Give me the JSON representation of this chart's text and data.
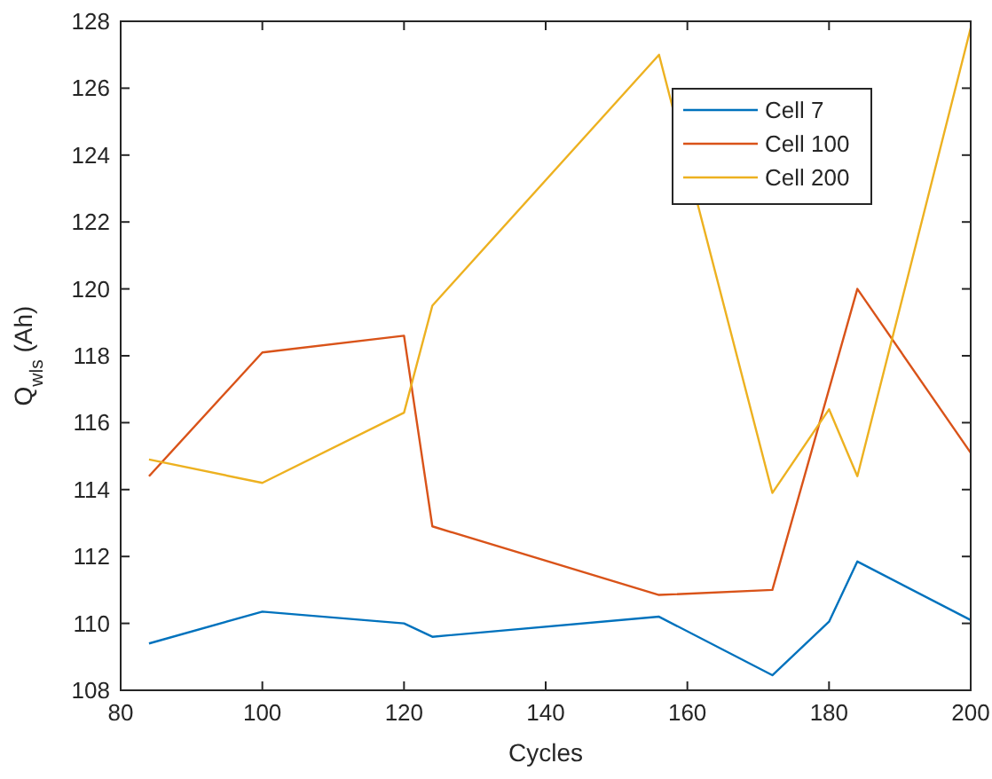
{
  "chart_data": {
    "type": "line",
    "xlabel": "Cycles",
    "ylabel": "Q$_{wls}$ (Ah)",
    "xlim": [
      80,
      200
    ],
    "ylim": [
      108,
      128
    ],
    "xticks": [
      80,
      100,
      120,
      140,
      160,
      180,
      200
    ],
    "yticks": [
      108,
      110,
      112,
      114,
      116,
      118,
      120,
      122,
      124,
      126,
      128
    ],
    "legend": "top right",
    "grid": false,
    "series": [
      {
        "name": "Cell 7",
        "color": "#0072bd",
        "x": [
          84,
          100,
          120,
          124,
          156,
          172,
          180,
          184,
          200
        ],
        "values": [
          109.4,
          110.35,
          110.0,
          109.6,
          110.2,
          108.45,
          110.05,
          111.85,
          110.1
        ]
      },
      {
        "name": "Cell 100",
        "color": "#d95319",
        "x": [
          84,
          100,
          120,
          124,
          156,
          172,
          184,
          200
        ],
        "values": [
          114.4,
          118.1,
          118.6,
          112.9,
          110.85,
          111.0,
          120.0,
          115.1
        ]
      },
      {
        "name": "Cell 200",
        "color": "#edb120",
        "x": [
          84,
          100,
          120,
          124,
          156,
          172,
          180,
          184,
          200
        ],
        "values": [
          114.9,
          114.2,
          116.3,
          119.5,
          127.0,
          113.9,
          116.4,
          114.4,
          127.8
        ]
      }
    ]
  }
}
